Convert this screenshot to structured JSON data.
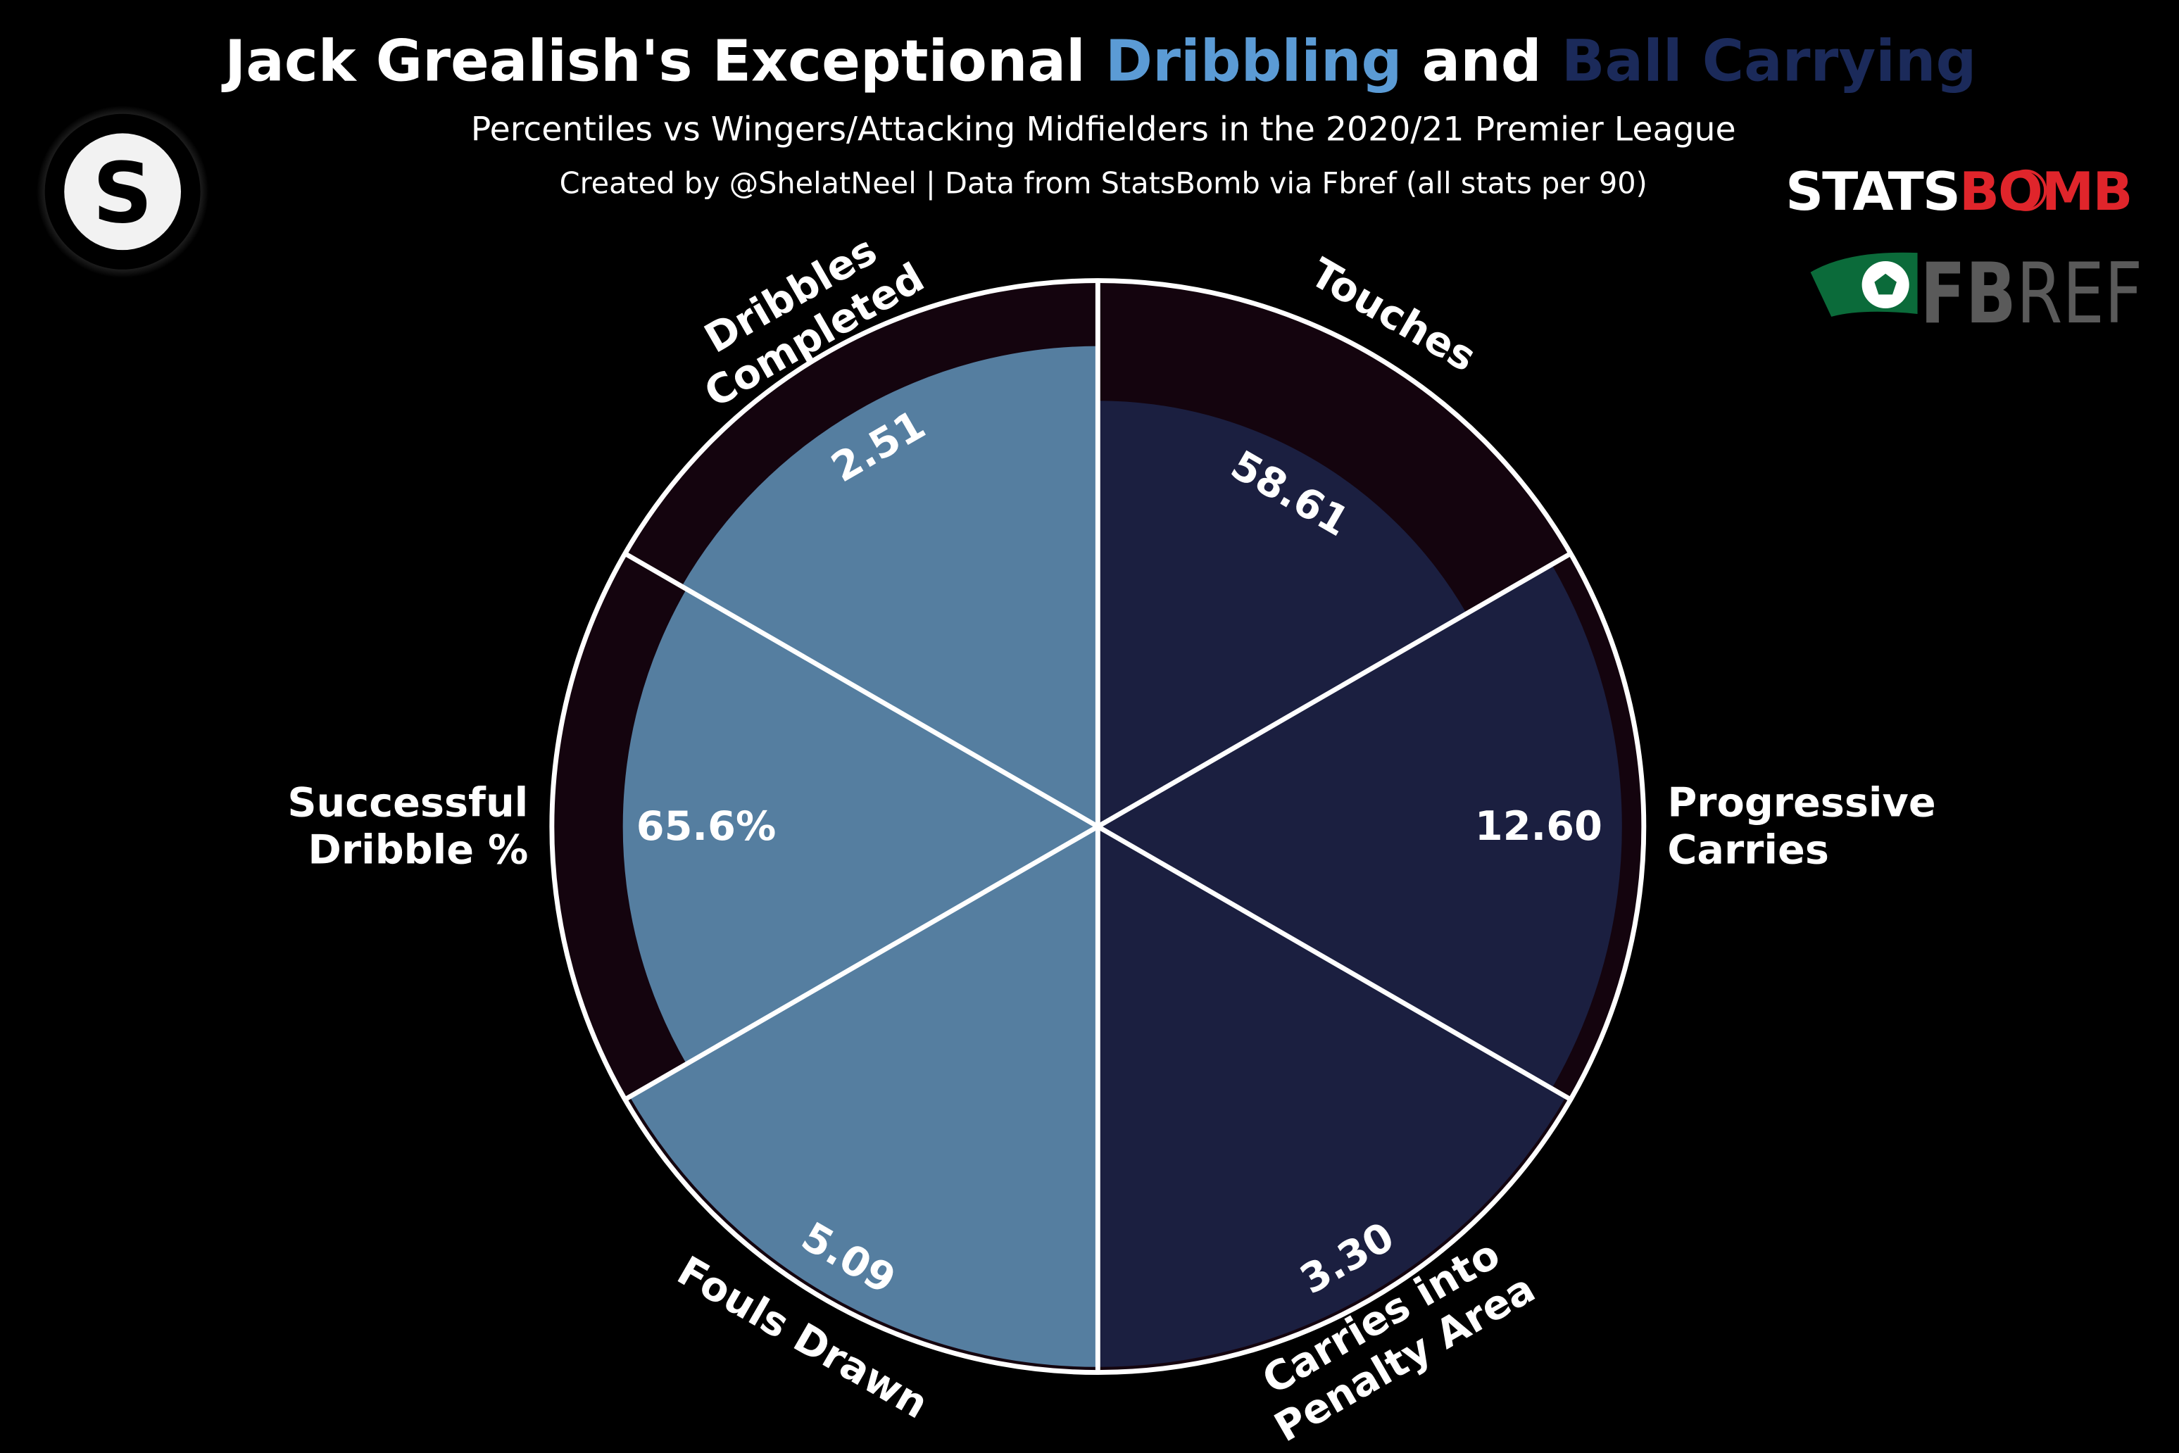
{
  "header": {
    "title_parts": [
      "Jack Grealish's Exceptional ",
      "Dribbling",
      " and ",
      "Ball Carrying"
    ],
    "subtitle": "Percentiles vs Wingers/Attacking Midfielders in the 2020/21 Premier League",
    "credit": "Created by @ShelatNeel | Data from StatsBomb via Fbref (all stats per 90)"
  },
  "logos": {
    "author": "S",
    "statsbomb": [
      "STATS",
      "BOMB"
    ],
    "fbref": [
      "FB",
      "REF"
    ]
  },
  "colors": {
    "dribbling": "#5b9bd5",
    "ball_carrying": "#1b2a5a",
    "dribbling_slice": "#557ea0",
    "carrying_slice": "#1b1f40",
    "background_slice": "#14040e",
    "statsbomb_red": "#e0252b",
    "fbref_green": "#0b6b3a",
    "fbref_gray": "#5a5a5a"
  },
  "chart_data": {
    "type": "pie",
    "subtype": "pizza (polar bar, percentile radius)",
    "radial_range": [
      0,
      100
    ],
    "slices": [
      {
        "param": [
          "Touches"
        ],
        "value_label": "58.61",
        "percentile": 78,
        "group": "ball_carrying"
      },
      {
        "param": [
          "Progressive",
          "Carries"
        ],
        "value_label": "12.60",
        "percentile": 96,
        "group": "ball_carrying"
      },
      {
        "param": [
          "Carries into",
          "Penalty Area"
        ],
        "value_label": "3.30",
        "percentile": 99,
        "group": "ball_carrying"
      },
      {
        "param": [
          "Fouls Drawn"
        ],
        "value_label": "5.09",
        "percentile": 99,
        "group": "dribbling"
      },
      {
        "param": [
          "Successful",
          "Dribble %"
        ],
        "value_label": "65.6%",
        "percentile": 87,
        "group": "dribbling"
      },
      {
        "param": [
          "Dribbles",
          "Completed"
        ],
        "value_label": "2.51",
        "percentile": 88,
        "group": "dribbling"
      }
    ]
  }
}
